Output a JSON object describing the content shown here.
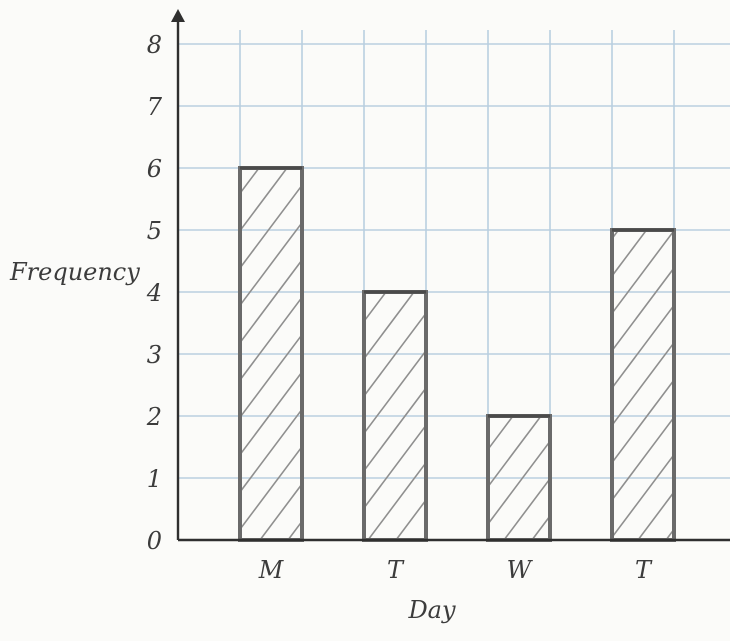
{
  "chart_data": {
    "type": "bar",
    "categories": [
      "M",
      "T",
      "W",
      "T"
    ],
    "values": [
      6,
      4,
      2,
      5
    ],
    "title": "",
    "xlabel": "Day",
    "ylabel": "Frequency",
    "ylim": [
      0,
      8
    ],
    "yticks": [
      "0",
      "1",
      "2",
      "3",
      "4",
      "5",
      "6",
      "7",
      "8"
    ],
    "grid": true,
    "bar_style": "hatched"
  },
  "colors": {
    "grid": "#b9cfe0",
    "axis": "#2f2f2f",
    "bar_outline": "#6a6a6a",
    "hatch": "#8f8f8f",
    "text": "#3c3c3c",
    "paper": "#fbfbf9"
  }
}
